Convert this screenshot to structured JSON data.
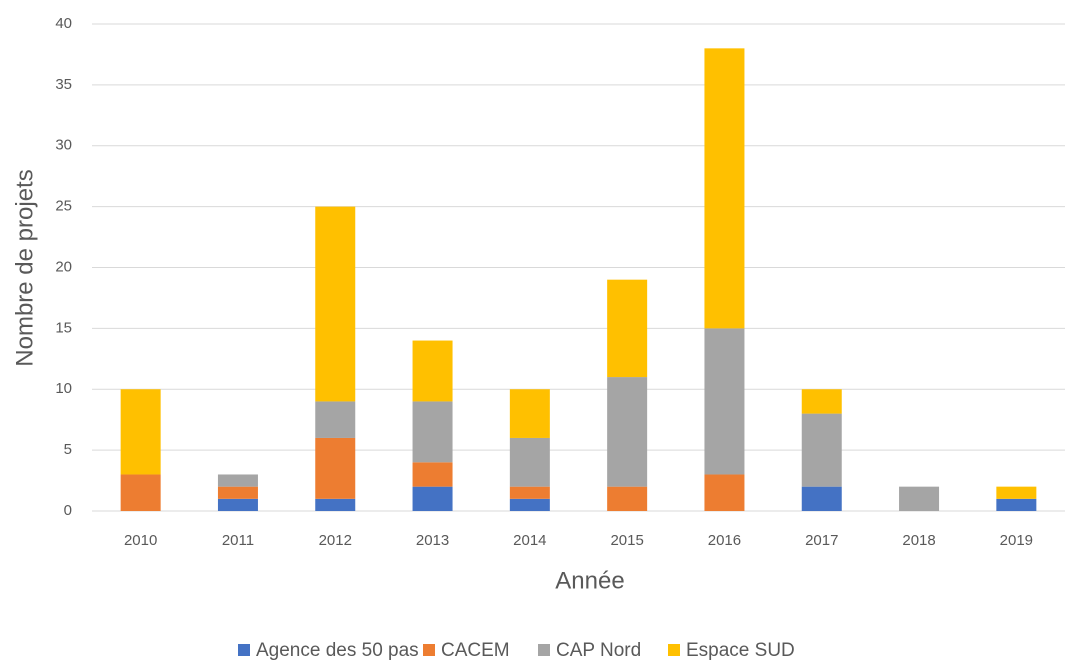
{
  "chart_data": {
    "type": "stacked_bar",
    "xlabel": "Année",
    "ylabel": "Nombre de projets",
    "categories": [
      "2010",
      "2011",
      "2012",
      "2013",
      "2014",
      "2015",
      "2016",
      "2017",
      "2018",
      "2019"
    ],
    "series": [
      {
        "name": "Agence des 50 pas",
        "color": "#4472c4",
        "values": [
          0,
          1,
          1,
          2,
          1,
          0,
          0,
          2,
          0,
          1
        ]
      },
      {
        "name": "CACEM",
        "color": "#ed7d31",
        "values": [
          3,
          1,
          5,
          2,
          1,
          2,
          3,
          0,
          0,
          0
        ]
      },
      {
        "name": "CAP Nord",
        "color": "#a5a5a5",
        "values": [
          0,
          1,
          3,
          5,
          4,
          9,
          12,
          6,
          2,
          0
        ]
      },
      {
        "name": "Espace SUD",
        "color": "#ffc000",
        "values": [
          7,
          0,
          16,
          5,
          4,
          8,
          23,
          2,
          0,
          1
        ]
      }
    ],
    "ylim": [
      0,
      40
    ],
    "yticks": [
      0,
      5,
      10,
      15,
      20,
      25,
      30,
      35,
      40
    ],
    "grid": true,
    "legend": "bottom"
  }
}
